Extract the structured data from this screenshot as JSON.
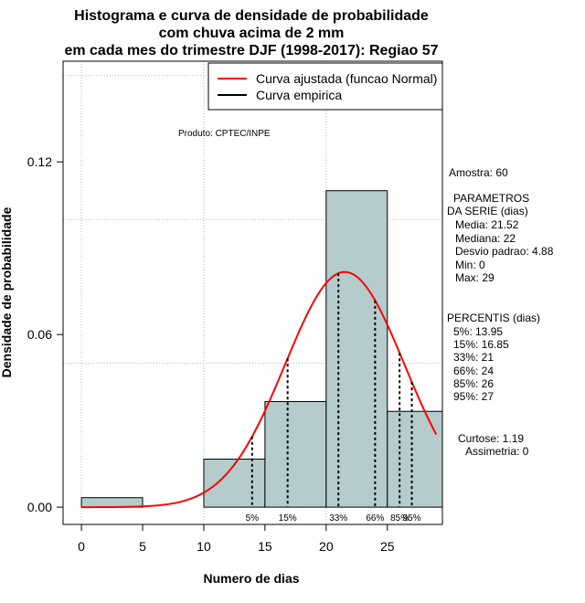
{
  "chart_data": {
    "type": "bar",
    "title": [
      "Histograma e curva de densidade de probabilidade",
      "com chuva acima de 2 mm",
      "em cada mes do trimestre DJF (1998-2017): Regiao 57"
    ],
    "xlabel": "Numero de dias",
    "ylabel": "Densidade de probabilidade",
    "xlim": [
      -1.5,
      29.5
    ],
    "ylim": [
      -0.006,
      0.155
    ],
    "x_ticks": [
      0,
      5,
      10,
      15,
      20,
      25
    ],
    "y_ticks": [
      0.0,
      0.06,
      0.12
    ],
    "y_tick_labels": [
      "0.00",
      "0.06",
      "0.12"
    ],
    "grid_x": [
      0,
      10,
      20
    ],
    "grid_y": [
      0.05,
      0.1,
      0.15
    ],
    "bins": [
      {
        "start": 0,
        "end": 5,
        "density": 0.0033
      },
      {
        "start": 5,
        "end": 10,
        "density": 0.0
      },
      {
        "start": 10,
        "end": 15,
        "density": 0.0167
      },
      {
        "start": 15,
        "end": 20,
        "density": 0.0367
      },
      {
        "start": 20,
        "end": 25,
        "density": 0.11
      },
      {
        "start": 25,
        "end": 30,
        "density": 0.0333
      }
    ],
    "bar_color": "#b4cccc",
    "curve": {
      "type": "normal",
      "mean": 21.52,
      "sd": 4.88,
      "x_range": [
        0,
        29
      ],
      "color": "#ff0000"
    },
    "percentile_lines": [
      {
        "label": "5%",
        "x": 13.95
      },
      {
        "label": "15%",
        "x": 16.85
      },
      {
        "label": "33%",
        "x": 21
      },
      {
        "label": "66%",
        "x": 24
      },
      {
        "label": "85%",
        "x": 26
      },
      {
        "label": "95%",
        "x": 27
      }
    ],
    "legend": {
      "position": "top-right",
      "items": [
        {
          "label": "Curva ajustada (funcao Normal)",
          "color": "#ff0000"
        },
        {
          "label": "Curva empirica",
          "color": "#000000"
        }
      ]
    },
    "credit": "Produto: CPTEC/INPE"
  },
  "stats": {
    "amostra": "Amostra: 60",
    "params_title_1": "PARAMETROS",
    "params_title_2": "DA SERIE (dias)",
    "media": "Media: 21.52",
    "mediana": "Mediana: 22",
    "desvio": "Desvio padrao: 4.88",
    "min": "Min: 0",
    "max": "Max: 29",
    "percentis_title": "PERCENTIS (dias)",
    "p5": "5%: 13.95",
    "p15": "15%: 16.85",
    "p33": "33%: 21",
    "p66": "66%: 24",
    "p85": "85%: 26",
    "p95": "95%: 27",
    "curtose": "Curtose: 1.19",
    "assimetria": "Assimetria: 0"
  }
}
